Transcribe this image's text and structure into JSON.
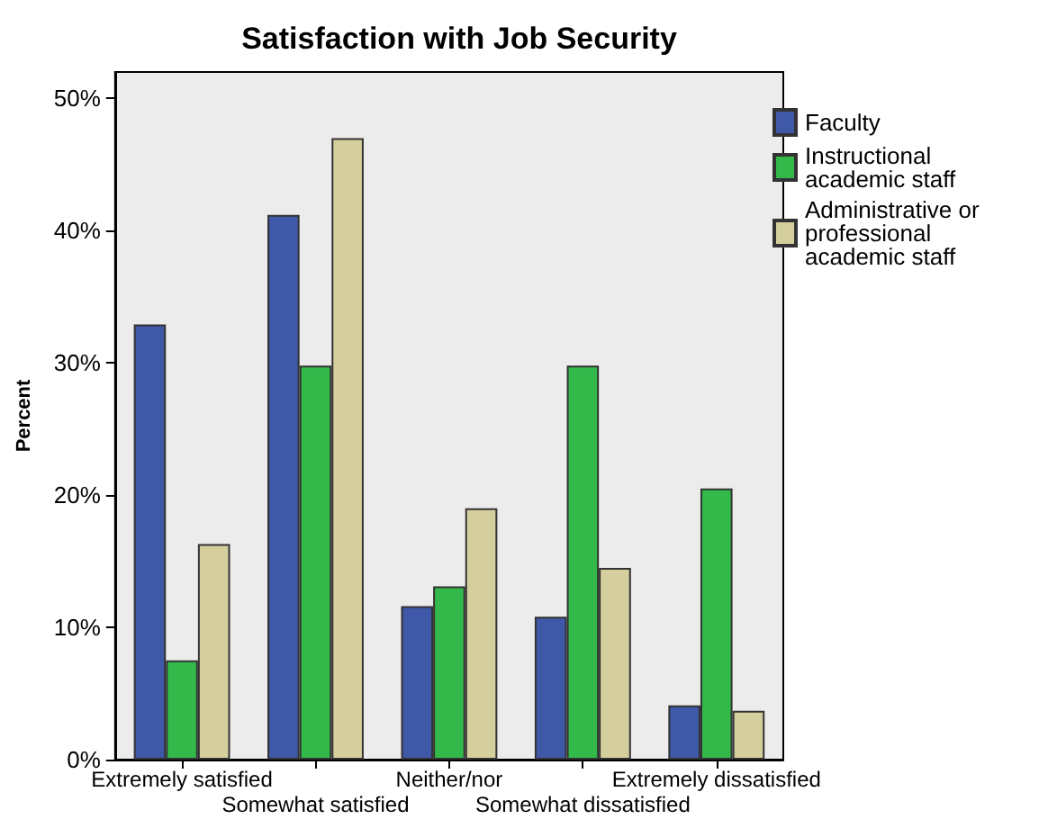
{
  "chart_data": {
    "type": "bar",
    "title": "Satisfaction with Job Security",
    "ylabel": "Percent",
    "categories": [
      "Extremely satisfied",
      "Somewhat satisfied",
      "Neither/nor",
      "Somewhat dissatisfied",
      "Extremely dissatisfied"
    ],
    "series": [
      {
        "name": "Faculty",
        "color": "#3f58a8",
        "values": [
          32.9,
          41.2,
          11.6,
          10.8,
          4.1
        ]
      },
      {
        "name": "Instructional academic staff",
        "color": "#32b94a",
        "values": [
          7.5,
          29.8,
          13.1,
          29.8,
          20.5
        ]
      },
      {
        "name": "Administrative or professional academic staff",
        "color": "#d5cf9d",
        "values": [
          16.3,
          47.0,
          19.0,
          14.5,
          3.7
        ]
      }
    ],
    "ylim": [
      0,
      52
    ],
    "yticks": [
      {
        "value": 0,
        "label": "0%"
      },
      {
        "value": 10,
        "label": "10%"
      },
      {
        "value": 20,
        "label": "20%"
      },
      {
        "value": 30,
        "label": "30%"
      },
      {
        "value": 40,
        "label": "40%"
      },
      {
        "value": 50,
        "label": "50%"
      }
    ],
    "grid": false,
    "legend": "top right"
  }
}
